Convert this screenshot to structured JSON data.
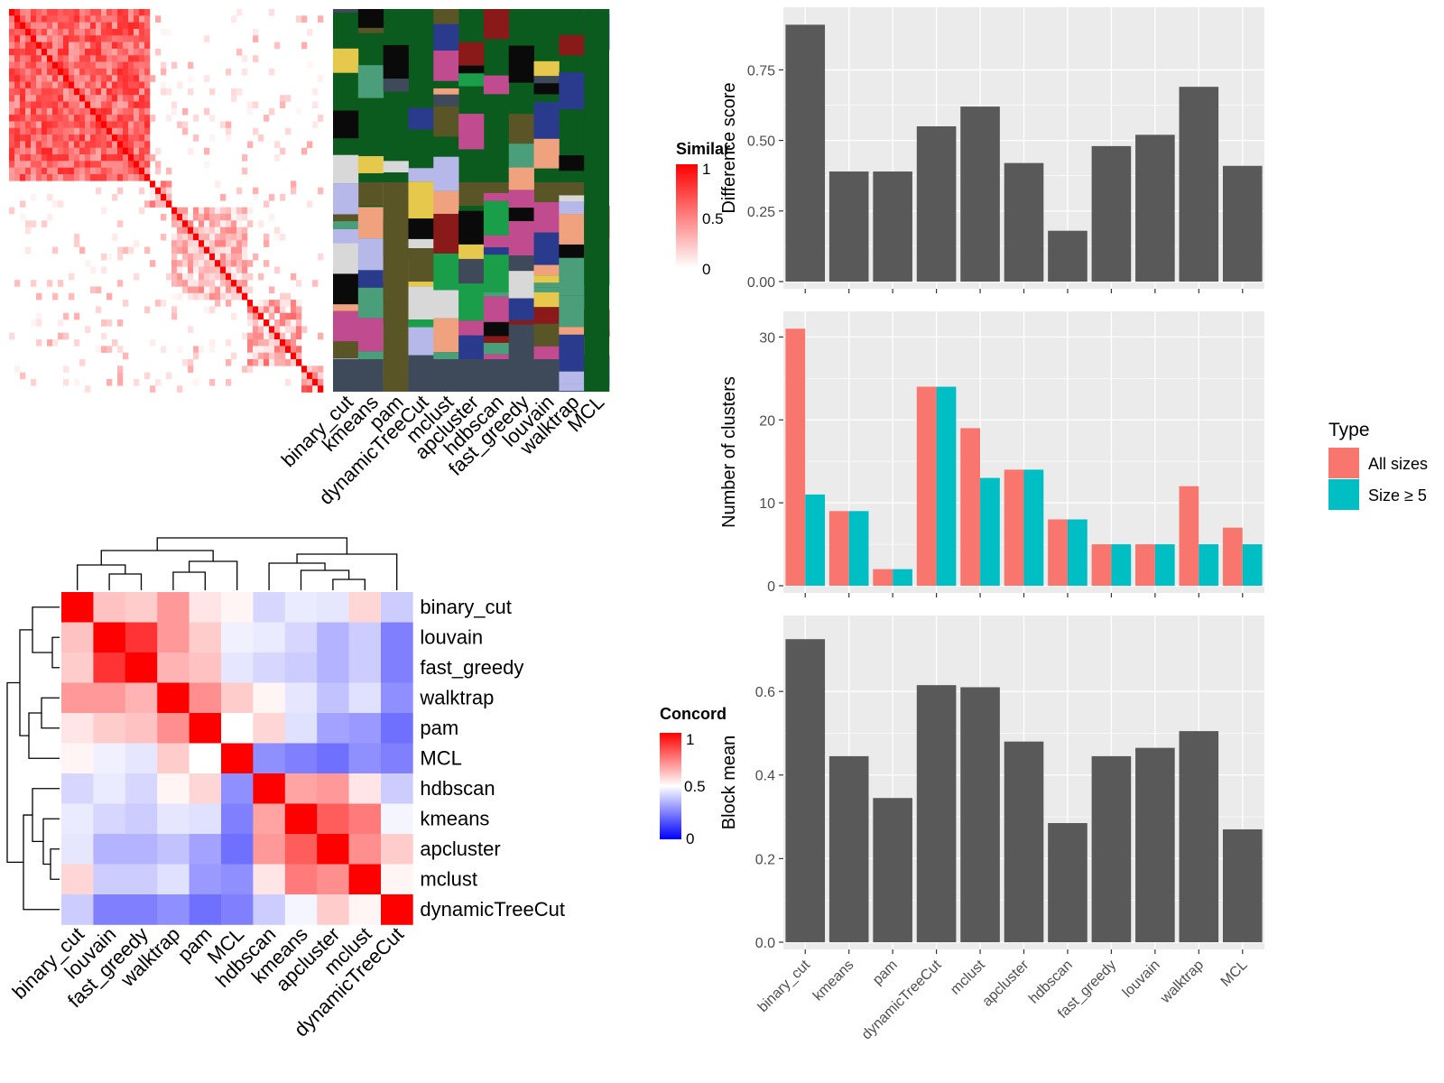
{
  "colors": {
    "panel_bg": "#ebebeb",
    "grid": "#ffffff",
    "bar": "#595959",
    "all_sizes": "#f8766d",
    "size_ge_5": "#00bfc4",
    "heat_low": "#ffffff",
    "heat_high": "#ff0000",
    "concord_low": "#0000ff",
    "concord_mid": "#ffffff",
    "concord_high": "#ff0000",
    "cluster_bg": "#0b5a1e"
  },
  "heatmap_top": {
    "legend_title": "Similar",
    "legend_ticks": [
      "1",
      "0.5",
      "0"
    ],
    "method_labels": [
      "binary_cut",
      "kmeans",
      "pam",
      "dynamicTreeCut",
      "mclust",
      "apcluster",
      "hdbscan",
      "fast_greedy",
      "louvain",
      "walktrap",
      "MCL"
    ]
  },
  "concordance": {
    "legend_title": "Concord",
    "legend_ticks": [
      "1",
      "0.5",
      "0"
    ],
    "row_labels": [
      "binary_cut",
      "louvain",
      "fast_greedy",
      "walktrap",
      "pam",
      "MCL",
      "hdbscan",
      "kmeans",
      "apcluster",
      "mclust",
      "dynamicTreeCut"
    ],
    "col_labels": [
      "binary_cut",
      "louvain",
      "fast_greedy",
      "walktrap",
      "pam",
      "MCL",
      "hdbscan",
      "kmeans",
      "apcluster",
      "mclust",
      "dynamicTreeCut"
    ],
    "matrix": [
      [
        1.0,
        0.62,
        0.6,
        0.7,
        0.55,
        0.52,
        0.42,
        0.46,
        0.45,
        0.58,
        0.4
      ],
      [
        0.62,
        1.0,
        0.9,
        0.7,
        0.6,
        0.47,
        0.46,
        0.42,
        0.35,
        0.4,
        0.25
      ],
      [
        0.6,
        0.9,
        1.0,
        0.65,
        0.62,
        0.45,
        0.42,
        0.4,
        0.35,
        0.4,
        0.25
      ],
      [
        0.7,
        0.7,
        0.65,
        1.0,
        0.72,
        0.6,
        0.52,
        0.45,
        0.38,
        0.44,
        0.28
      ],
      [
        0.55,
        0.6,
        0.62,
        0.72,
        1.0,
        0.5,
        0.58,
        0.44,
        0.32,
        0.3,
        0.22
      ],
      [
        0.52,
        0.47,
        0.45,
        0.6,
        0.5,
        1.0,
        0.28,
        0.25,
        0.22,
        0.28,
        0.25
      ],
      [
        0.42,
        0.46,
        0.42,
        0.52,
        0.58,
        0.28,
        1.0,
        0.68,
        0.7,
        0.55,
        0.4
      ],
      [
        0.46,
        0.42,
        0.4,
        0.45,
        0.44,
        0.25,
        0.68,
        1.0,
        0.82,
        0.76,
        0.48
      ],
      [
        0.45,
        0.35,
        0.35,
        0.38,
        0.32,
        0.22,
        0.7,
        0.82,
        1.0,
        0.72,
        0.6
      ],
      [
        0.58,
        0.4,
        0.4,
        0.44,
        0.3,
        0.28,
        0.55,
        0.76,
        0.72,
        1.0,
        0.52
      ],
      [
        0.4,
        0.25,
        0.25,
        0.28,
        0.22,
        0.25,
        0.4,
        0.48,
        0.6,
        0.52,
        1.0
      ]
    ]
  },
  "chart_data": [
    {
      "type": "bar",
      "categories": [
        "binary_cut",
        "kmeans",
        "pam",
        "dynamicTreeCut",
        "mclust",
        "apcluster",
        "hdbscan",
        "fast_greedy",
        "louvain",
        "walktrap",
        "MCL"
      ],
      "values": [
        0.91,
        0.39,
        0.39,
        0.55,
        0.62,
        0.42,
        0.18,
        0.48,
        0.52,
        0.69,
        0.41
      ],
      "ylabel": "Difference score",
      "ylim": [
        0,
        0.94
      ],
      "yticks": [
        0.0,
        0.25,
        0.5,
        0.75
      ],
      "ytick_labels": [
        "0.00",
        "0.25",
        "0.50",
        "0.75"
      ],
      "grid": true,
      "show_x_labels": false
    },
    {
      "type": "bar",
      "categories": [
        "binary_cut",
        "kmeans",
        "pam",
        "dynamicTreeCut",
        "mclust",
        "apcluster",
        "hdbscan",
        "fast_greedy",
        "louvain",
        "walktrap",
        "MCL"
      ],
      "series": [
        {
          "name": "All sizes",
          "values": [
            31,
            9,
            2,
            24,
            19,
            14,
            8,
            5,
            5,
            12,
            7
          ]
        },
        {
          "name": "Size ≥ 5",
          "values": [
            11,
            9,
            2,
            24,
            13,
            14,
            8,
            5,
            5,
            5,
            5
          ]
        }
      ],
      "ylabel": "Number of clusters",
      "ylim": [
        0,
        32
      ],
      "yticks": [
        0,
        10,
        20,
        30
      ],
      "ytick_labels": [
        "0",
        "10",
        "20",
        "30"
      ],
      "legend_title": "Type",
      "legend_position": "right",
      "grid": true,
      "show_x_labels": false
    },
    {
      "type": "bar",
      "categories": [
        "binary_cut",
        "kmeans",
        "pam",
        "dynamicTreeCut",
        "mclust",
        "apcluster",
        "hdbscan",
        "fast_greedy",
        "louvain",
        "walktrap",
        "MCL"
      ],
      "values": [
        0.725,
        0.445,
        0.345,
        0.615,
        0.61,
        0.48,
        0.285,
        0.445,
        0.465,
        0.505,
        0.27
      ],
      "ylabel": "Block mean",
      "ylim": [
        0,
        0.76
      ],
      "yticks": [
        0.0,
        0.2,
        0.4,
        0.6
      ],
      "ytick_labels": [
        "0.0",
        "0.2",
        "0.4",
        "0.6"
      ],
      "grid": true,
      "show_x_labels": true
    }
  ]
}
